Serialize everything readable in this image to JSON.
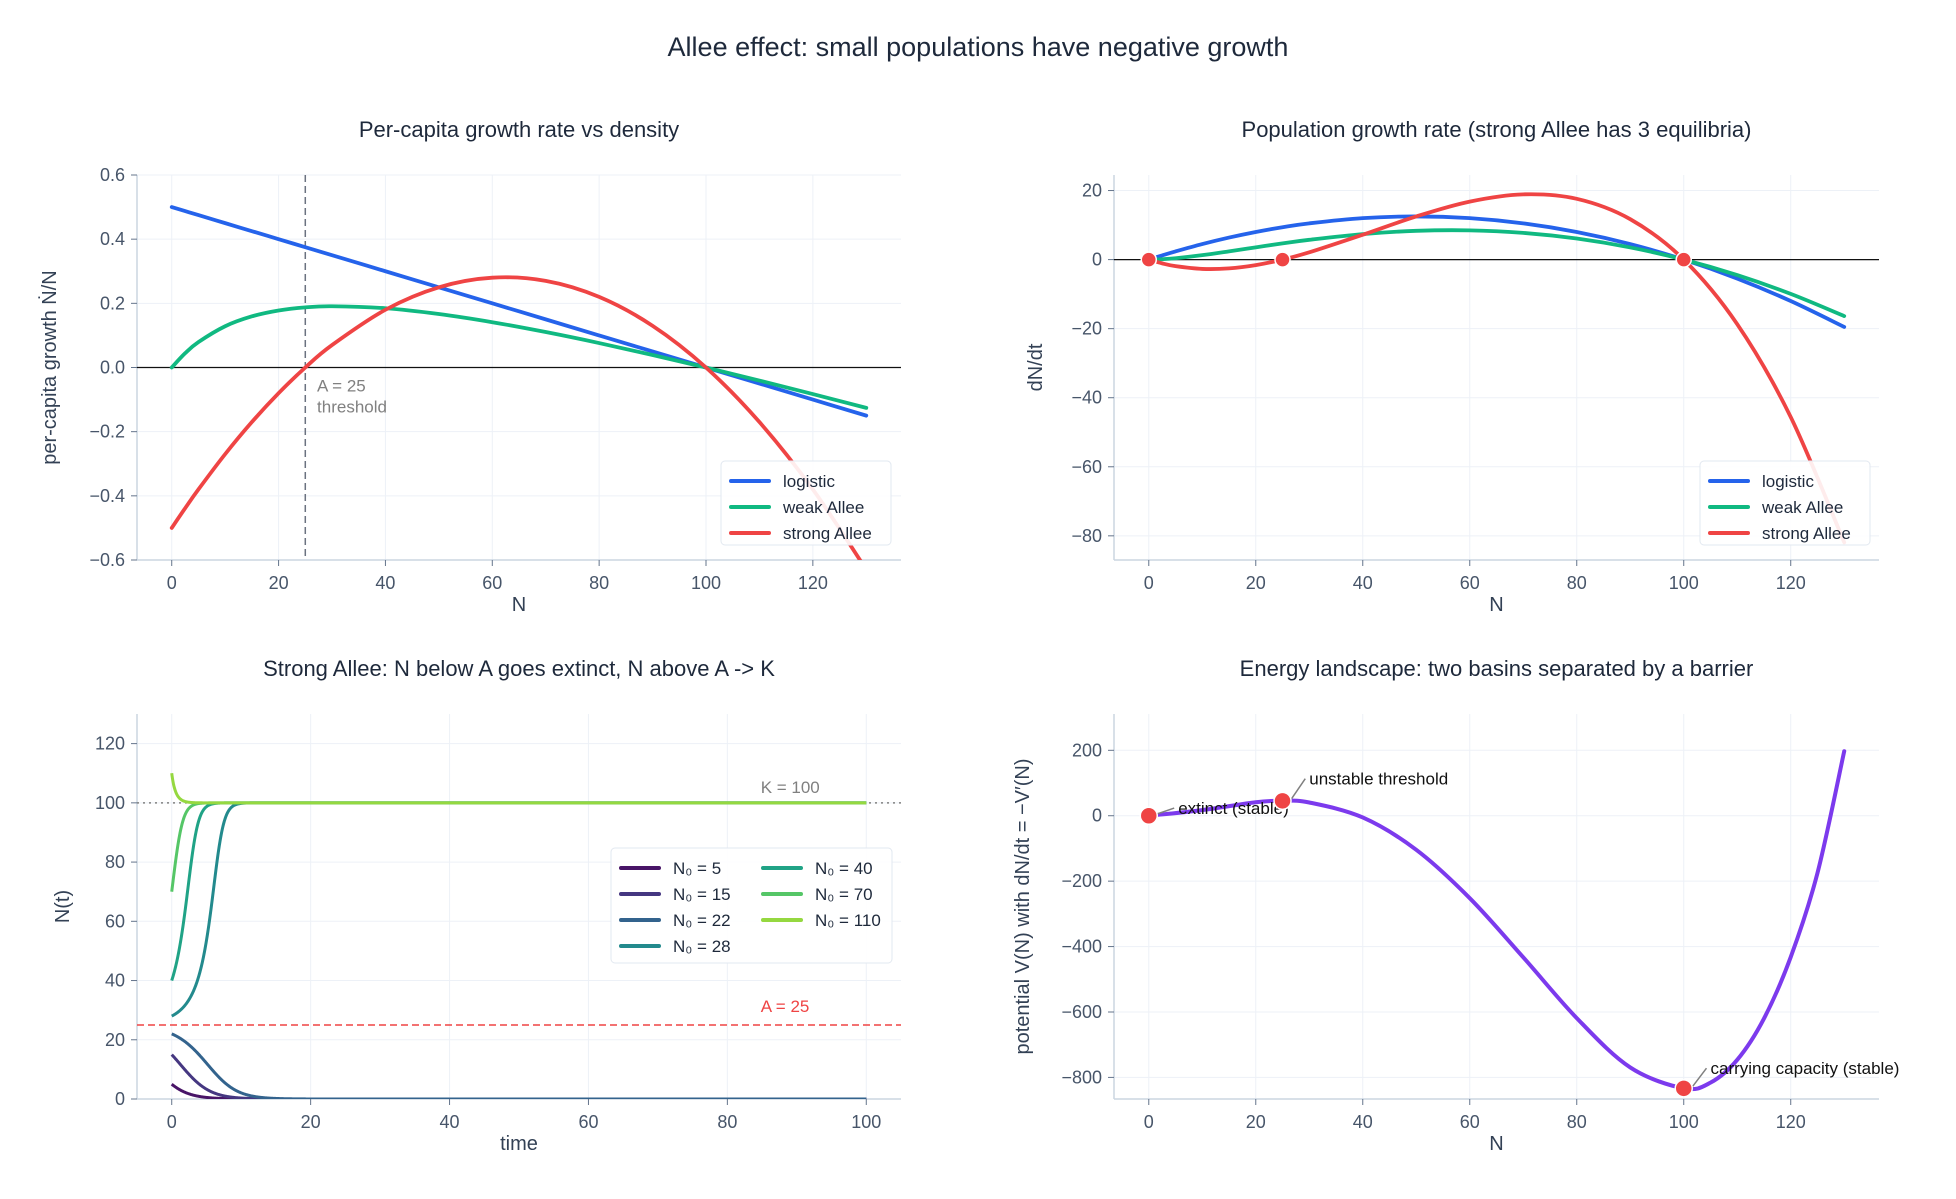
{
  "figure_title": "Allee effect:  small populations have negative growth",
  "colors": {
    "logistic": "#2563eb",
    "weak Allee": "#10b981",
    "strong Allee": "#ef4444",
    "potential": "#7c3aed",
    "equilibrium": "#ef4444"
  },
  "chart_data": [
    {
      "type": "line",
      "title": "Per-capita growth rate vs density",
      "xlabel": "N",
      "ylabel": "per-capita growth  Ṅ/N",
      "xlim": [
        -6.5,
        136.5
      ],
      "ylim": [
        -0.6,
        0.6
      ],
      "xticks": [
        0,
        20,
        40,
        60,
        80,
        100,
        120
      ],
      "yticks": [
        -0.6,
        -0.4,
        -0.2,
        0.0,
        0.2,
        0.4,
        0.6
      ],
      "ytick_labels": [
        "−0.6",
        "−0.4",
        "−0.2",
        "0.0",
        "0.2",
        "0.4",
        "0.6"
      ],
      "grid": true,
      "legend": "lower-right",
      "x": [
        0,
        2.5,
        5,
        10,
        15,
        20,
        25,
        30,
        40,
        50,
        60,
        70,
        80,
        90,
        100,
        110,
        120,
        130
      ],
      "series": [
        {
          "name": "logistic",
          "values": [
            0.5,
            0.4875,
            0.475,
            0.45,
            0.425,
            0.4,
            0.375,
            0.35,
            0.3,
            0.25,
            0.2,
            0.15,
            0.1,
            0.05,
            0,
            -0.05,
            -0.1,
            -0.15
          ]
        },
        {
          "name": "weak Allee",
          "values": [
            0,
            0.0443,
            0.0792,
            0.1286,
            0.1594,
            0.1778,
            0.1875,
            0.1909,
            0.1846,
            0.1667,
            0.1412,
            0.1105,
            0.0762,
            0.0391,
            0,
            -0.0407,
            -0.0828,
            -0.1258
          ]
        },
        {
          "name": "strong Allee",
          "values": [
            -0.5,
            -0.4388,
            -0.38,
            -0.27,
            -0.17,
            -0.08,
            0,
            0.07,
            0.18,
            0.25,
            0.28,
            0.27,
            0.22,
            0.13,
            0,
            -0.17,
            -0.38,
            -0.63
          ]
        }
      ],
      "annotations": {
        "threshold_line": 25,
        "threshold_label": "A = 25",
        "threshold_sublabel": "threshold"
      }
    },
    {
      "type": "line",
      "title": "Population growth rate (strong Allee has 3 equilibria)",
      "xlabel": "N",
      "ylabel": "dN/dt",
      "xlim": [
        -6.5,
        136.5
      ],
      "ylim": [
        -87,
        24.5
      ],
      "xticks": [
        0,
        20,
        40,
        60,
        80,
        100,
        120
      ],
      "yticks": [
        -80,
        -60,
        -40,
        -20,
        0,
        20
      ],
      "ytick_labels": [
        "−80",
        "−60",
        "−40",
        "−20",
        "0",
        "20"
      ],
      "grid": true,
      "legend": "lower-right",
      "x": [
        0,
        2.5,
        5,
        10,
        15,
        20,
        25,
        30,
        40,
        50,
        60,
        70,
        80,
        90,
        100,
        110,
        120,
        130
      ],
      "series": [
        {
          "name": "logistic",
          "values": [
            0,
            1.219,
            2.375,
            4.5,
            6.375,
            8,
            9.375,
            10.5,
            12,
            12.5,
            12,
            10.5,
            8,
            4.5,
            0,
            -5.5,
            -12,
            -19.5
          ]
        },
        {
          "name": "weak Allee",
          "values": [
            0,
            0.111,
            0.396,
            1.286,
            2.391,
            3.556,
            4.688,
            5.727,
            7.385,
            8.333,
            8.471,
            7.737,
            6.095,
            3.522,
            0,
            -4.481,
            -9.931,
            -16.355
          ]
        },
        {
          "name": "strong Allee",
          "values": [
            0,
            -1.097,
            -1.9,
            -2.7,
            -2.55,
            -1.6,
            0,
            2.1,
            7.2,
            12.5,
            16.8,
            18.9,
            17.6,
            11.7,
            0,
            -18.7,
            -45.6,
            -81.9
          ]
        }
      ],
      "equilibria": [
        0,
        25,
        100
      ]
    },
    {
      "type": "line",
      "title": "Strong Allee:  N below A goes extinct, N above A -> K",
      "xlabel": "time",
      "ylabel": "N(t)",
      "xlim": [
        -5,
        105
      ],
      "ylim": [
        0,
        130
      ],
      "xticks": [
        0,
        20,
        40,
        60,
        80,
        100
      ],
      "yticks": [
        0,
        20,
        40,
        60,
        80,
        100,
        120
      ],
      "ytick_labels": [
        "0",
        "20",
        "40",
        "60",
        "80",
        "100",
        "120"
      ],
      "grid": true,
      "legend": "center-right",
      "initial_conditions": [
        5,
        15,
        22,
        28,
        40,
        70,
        110
      ],
      "series": [
        {
          "name": "N₀ = 5",
          "color": "#481467"
        },
        {
          "name": "N₀ = 15",
          "color": "#453781"
        },
        {
          "name": "N₀ = 22",
          "color": "#33638d"
        },
        {
          "name": "N₀ = 28",
          "color": "#238a8d"
        },
        {
          "name": "N₀ = 40",
          "color": "#20a386"
        },
        {
          "name": "N₀ = 70",
          "color": "#55c667"
        },
        {
          "name": "N₀ = 110",
          "color": "#95d840"
        }
      ],
      "reference_lines": [
        {
          "value": 100,
          "label": "K = 100",
          "color": "#808080"
        },
        {
          "value": 25,
          "label": "A = 25",
          "color": "#ef4444"
        }
      ]
    },
    {
      "type": "line",
      "title": "Energy landscape:  two basins separated by a barrier",
      "xlabel": "N",
      "ylabel": "potential  V(N)  with  dN/dt = −V′(N)",
      "xlim": [
        -6.5,
        136.5
      ],
      "ylim": [
        -866,
        311
      ],
      "xticks": [
        0,
        20,
        40,
        60,
        80,
        100,
        120
      ],
      "yticks": [
        -800,
        -600,
        -400,
        -200,
        0,
        200
      ],
      "ytick_labels": [
        "−800",
        "−600",
        "−400",
        "−200",
        "0",
        "200"
      ],
      "grid": true,
      "x": [
        0,
        10,
        20,
        25,
        30,
        40,
        50,
        60,
        70,
        80,
        90,
        100,
        105,
        110,
        115,
        120,
        125,
        130
      ],
      "values": [
        0,
        17.17,
        41.33,
        45.57,
        40.5,
        -5.33,
        -104.17,
        -252,
        -432.83,
        -618.67,
        -769.5,
        -833.33,
        -816,
        -746.17,
        -620,
        -432,
        -175,
        197.17
      ],
      "points": [
        {
          "x": 0,
          "y": 0,
          "label": "extinct (stable)"
        },
        {
          "x": 25,
          "y": 45.57,
          "label": "unstable threshold"
        },
        {
          "x": 100,
          "y": -833.33,
          "label": "carrying capacity (stable)"
        }
      ]
    }
  ]
}
